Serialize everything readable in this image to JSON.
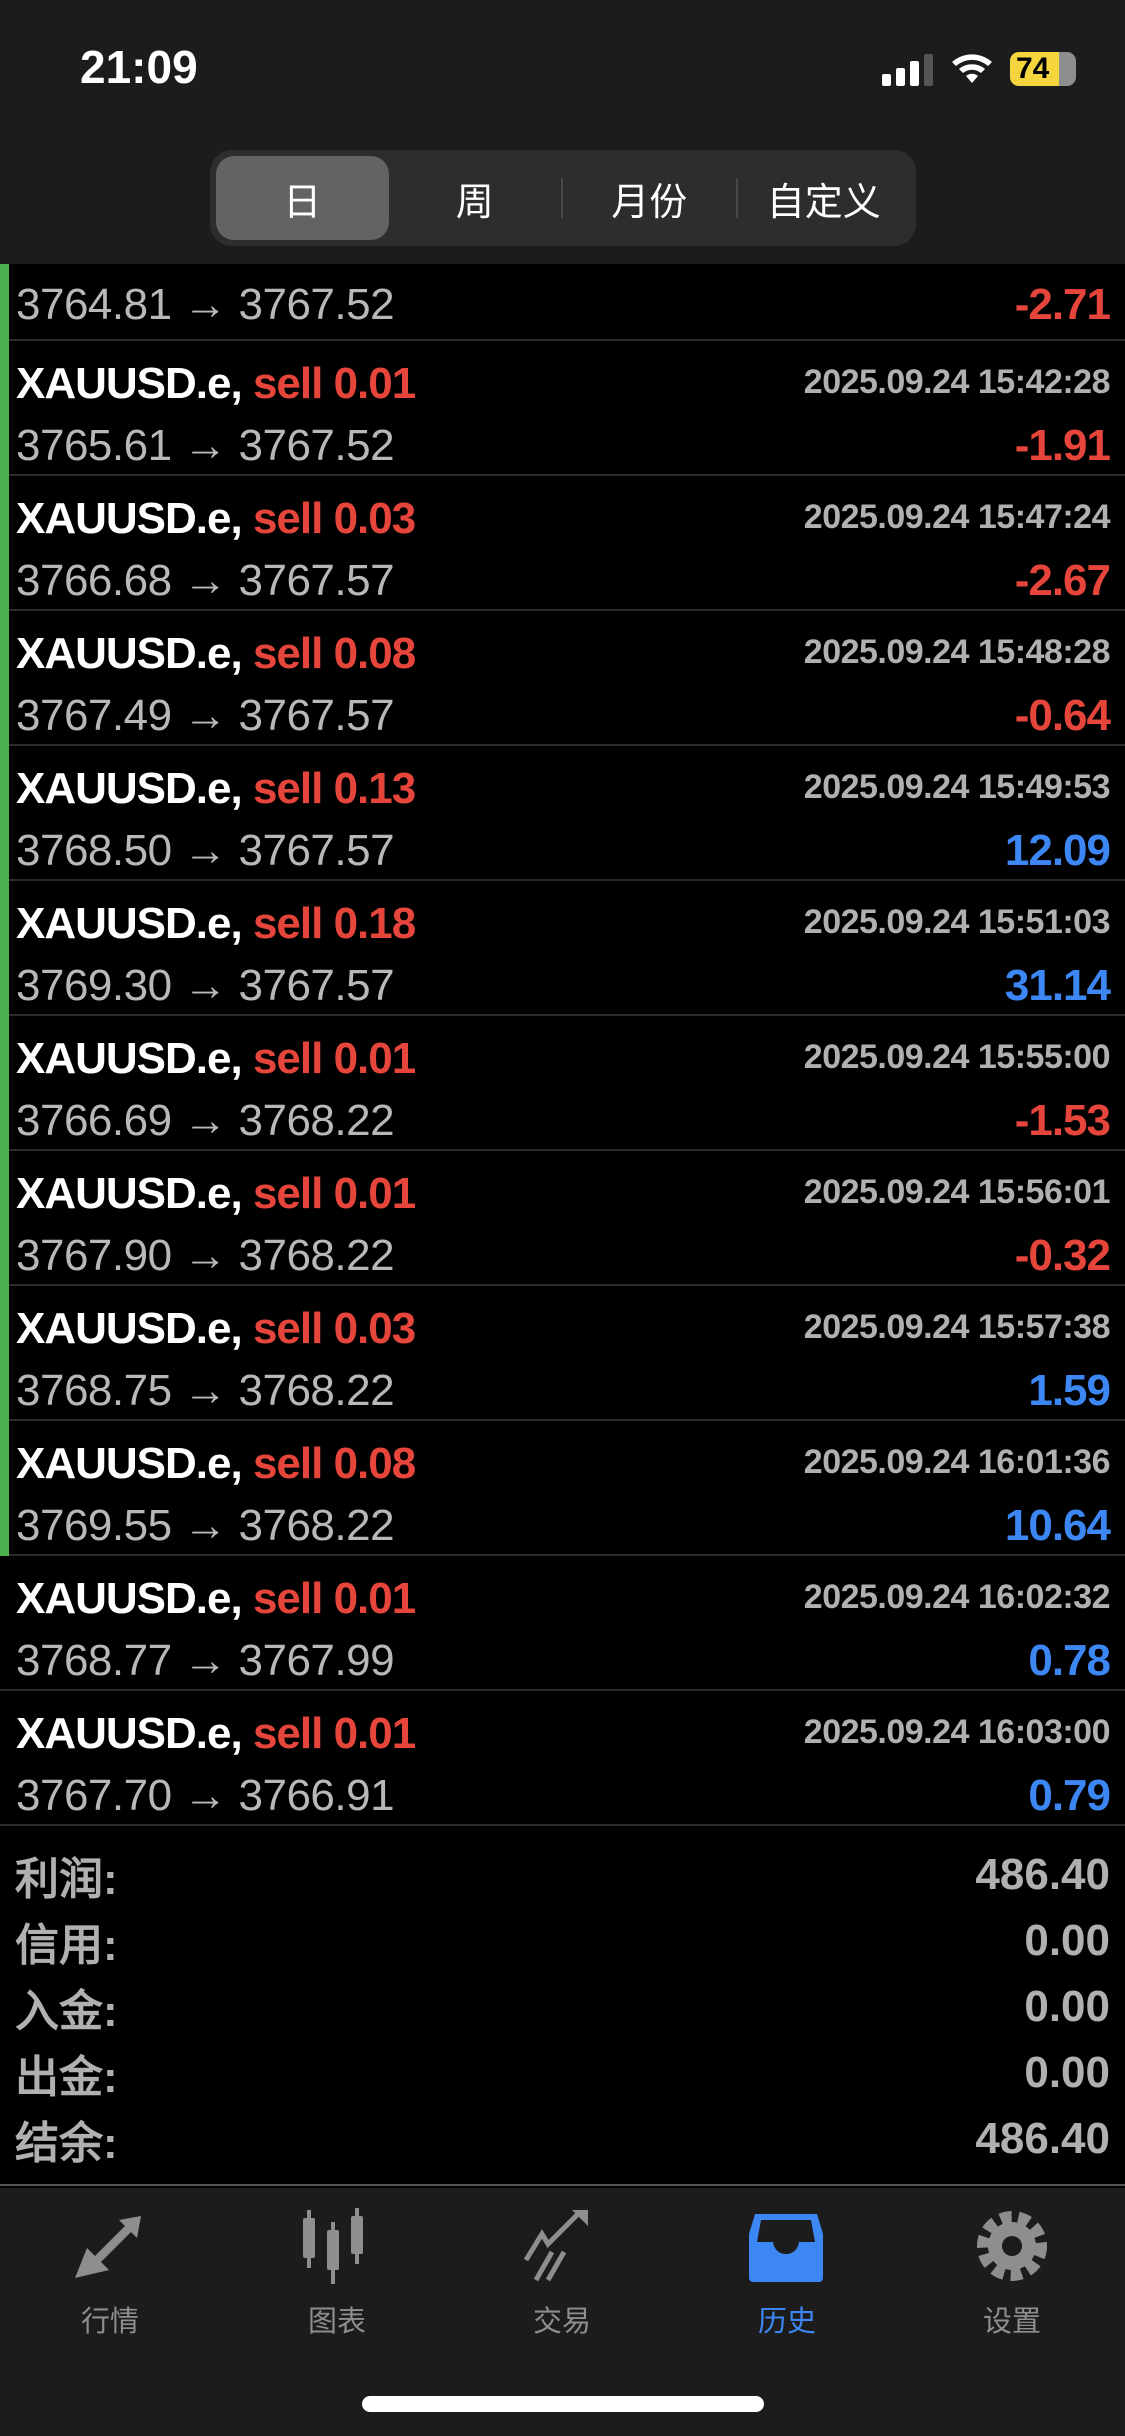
{
  "status": {
    "time": "21:09",
    "battery": "74"
  },
  "segments": [
    {
      "label": "日",
      "active": true
    },
    {
      "label": "周"
    },
    {
      "label": "月份"
    },
    {
      "label": "自定义"
    }
  ],
  "first_row": {
    "prices": "3764.81 → 3767.52",
    "profit": "-2.71"
  },
  "deals": [
    {
      "symbol": "XAUUSD.e,",
      "side": "sell 0.01",
      "time": "2025.09.24 15:42:28",
      "prices": "3765.61 → 3767.52",
      "profit": "-1.91",
      "sign": "neg",
      "marked": true
    },
    {
      "symbol": "XAUUSD.e,",
      "side": "sell 0.03",
      "time": "2025.09.24 15:47:24",
      "prices": "3766.68 → 3767.57",
      "profit": "-2.67",
      "sign": "neg",
      "marked": true
    },
    {
      "symbol": "XAUUSD.e,",
      "side": "sell 0.08",
      "time": "2025.09.24 15:48:28",
      "prices": "3767.49 → 3767.57",
      "profit": "-0.64",
      "sign": "neg",
      "marked": true
    },
    {
      "symbol": "XAUUSD.e,",
      "side": "sell 0.13",
      "time": "2025.09.24 15:49:53",
      "prices": "3768.50 → 3767.57",
      "profit": "12.09",
      "sign": "pos",
      "marked": true
    },
    {
      "symbol": "XAUUSD.e,",
      "side": "sell 0.18",
      "time": "2025.09.24 15:51:03",
      "prices": "3769.30 → 3767.57",
      "profit": "31.14",
      "sign": "pos",
      "marked": true
    },
    {
      "symbol": "XAUUSD.e,",
      "side": "sell 0.01",
      "time": "2025.09.24 15:55:00",
      "prices": "3766.69 → 3768.22",
      "profit": "-1.53",
      "sign": "neg",
      "marked": true
    },
    {
      "symbol": "XAUUSD.e,",
      "side": "sell 0.01",
      "time": "2025.09.24 15:56:01",
      "prices": "3767.90 → 3768.22",
      "profit": "-0.32",
      "sign": "neg",
      "marked": true
    },
    {
      "symbol": "XAUUSD.e,",
      "side": "sell 0.03",
      "time": "2025.09.24 15:57:38",
      "prices": "3768.75 → 3768.22",
      "profit": "1.59",
      "sign": "pos",
      "marked": true
    },
    {
      "symbol": "XAUUSD.e,",
      "side": "sell 0.08",
      "time": "2025.09.24 16:01:36",
      "prices": "3769.55 → 3768.22",
      "profit": "10.64",
      "sign": "pos",
      "marked": true
    },
    {
      "symbol": "XAUUSD.e,",
      "side": "sell 0.01",
      "time": "2025.09.24 16:02:32",
      "prices": "3768.77 → 3767.99",
      "profit": "0.78",
      "sign": "pos",
      "marked": false
    },
    {
      "symbol": "XAUUSD.e,",
      "side": "sell 0.01",
      "time": "2025.09.24 16:03:00",
      "prices": "3767.70 → 3766.91",
      "profit": "0.79",
      "sign": "pos",
      "marked": false
    }
  ],
  "summary": [
    {
      "label": "利润:",
      "value": "486.40"
    },
    {
      "label": "信用:",
      "value": "0.00"
    },
    {
      "label": "入金:",
      "value": "0.00"
    },
    {
      "label": "出金:",
      "value": "0.00"
    },
    {
      "label": "结余:",
      "value": "486.40"
    }
  ],
  "tabs": [
    {
      "label": "行情",
      "icon": "quotes-arrows-icon"
    },
    {
      "label": "图表",
      "icon": "candlestick-chart-icon"
    },
    {
      "label": "交易",
      "icon": "trade-trend-icon"
    },
    {
      "label": "历史",
      "icon": "history-inbox-icon",
      "active": true
    },
    {
      "label": "设置",
      "icon": "gear-icon"
    }
  ],
  "colors": {
    "profit_negative": "#e5453a",
    "profit_positive": "#3d87f5",
    "accent": "#3d87f5",
    "marker": "#4caf50"
  }
}
